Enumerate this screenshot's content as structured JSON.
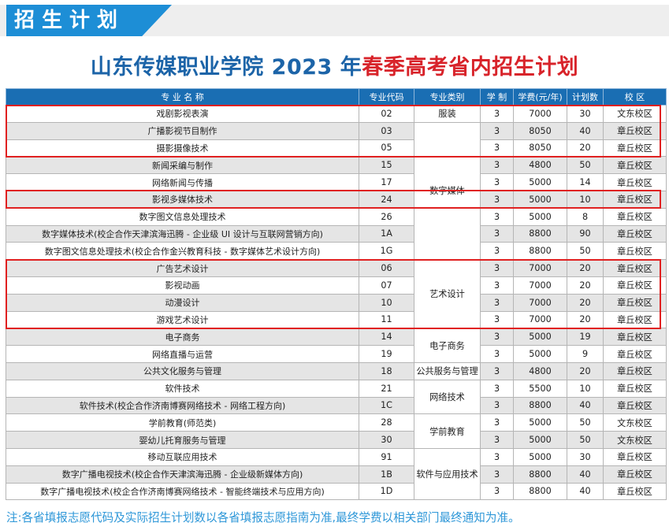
{
  "banner": {
    "title": "招生计划"
  },
  "heading": {
    "part1": "山东传媒职业学院 2023 年",
    "part2": "春季高考省内招生计划"
  },
  "table": {
    "headers": [
      "专 业 名 称",
      "专业代码",
      "专业类别",
      "学 制",
      "学费(元/年)",
      "计划数",
      "校 区"
    ],
    "rows": [
      {
        "name": "戏剧影视表演",
        "code": "02",
        "years": "3",
        "fee": "7000",
        "plan": "30",
        "campus": "文东校区"
      },
      {
        "name": "广播影视节目制作",
        "code": "03",
        "years": "3",
        "fee": "8050",
        "plan": "40",
        "campus": "章丘校区"
      },
      {
        "name": "摄影摄像技术",
        "code": "05",
        "years": "3",
        "fee": "8050",
        "plan": "20",
        "campus": "章丘校区"
      },
      {
        "name": "新闻采编与制作",
        "code": "15",
        "years": "3",
        "fee": "4800",
        "plan": "50",
        "campus": "章丘校区"
      },
      {
        "name": "网络新闻与传播",
        "code": "17",
        "years": "3",
        "fee": "5000",
        "plan": "14",
        "campus": "章丘校区"
      },
      {
        "name": "影视多媒体技术",
        "code": "24",
        "years": "3",
        "fee": "5000",
        "plan": "10",
        "campus": "章丘校区"
      },
      {
        "name": "数字图文信息处理技术",
        "code": "26",
        "years": "3",
        "fee": "5000",
        "plan": "8",
        "campus": "章丘校区"
      },
      {
        "name": "数字媒体技术(校企合作天津滨海迅腾 - 企业级 UI 设计与互联网营销方向)",
        "code": "1A",
        "years": "3",
        "fee": "8800",
        "plan": "90",
        "campus": "章丘校区"
      },
      {
        "name": "数字图文信息处理技术(校企合作金兴教育科技 - 数字媒体艺术设计方向)",
        "code": "1G",
        "years": "3",
        "fee": "8800",
        "plan": "50",
        "campus": "章丘校区"
      },
      {
        "name": "广告艺术设计",
        "code": "06",
        "years": "3",
        "fee": "7000",
        "plan": "20",
        "campus": "章丘校区"
      },
      {
        "name": "影视动画",
        "code": "07",
        "years": "3",
        "fee": "7000",
        "plan": "20",
        "campus": "章丘校区"
      },
      {
        "name": "动漫设计",
        "code": "10",
        "years": "3",
        "fee": "7000",
        "plan": "20",
        "campus": "章丘校区"
      },
      {
        "name": "游戏艺术设计",
        "code": "11",
        "years": "3",
        "fee": "7000",
        "plan": "20",
        "campus": "章丘校区"
      },
      {
        "name": "电子商务",
        "code": "14",
        "years": "3",
        "fee": "5000",
        "plan": "19",
        "campus": "章丘校区"
      },
      {
        "name": "网络直播与运营",
        "code": "19",
        "years": "3",
        "fee": "5000",
        "plan": "9",
        "campus": "章丘校区"
      },
      {
        "name": "公共文化服务与管理",
        "code": "18",
        "years": "3",
        "fee": "4800",
        "plan": "20",
        "campus": "章丘校区"
      },
      {
        "name": "软件技术",
        "code": "21",
        "years": "3",
        "fee": "5500",
        "plan": "10",
        "campus": "章丘校区"
      },
      {
        "name": "软件技术(校企合作济南博赛网络技术 - 网络工程方向)",
        "code": "1C",
        "years": "3",
        "fee": "8800",
        "plan": "40",
        "campus": "章丘校区"
      },
      {
        "name": "学前教育(师范类)",
        "code": "28",
        "years": "3",
        "fee": "5000",
        "plan": "50",
        "campus": "文东校区"
      },
      {
        "name": "婴幼儿托育服务与管理",
        "code": "30",
        "years": "3",
        "fee": "5000",
        "plan": "50",
        "campus": "文东校区"
      },
      {
        "name": "移动互联应用技术",
        "code": "91",
        "years": "3",
        "fee": "5000",
        "plan": "30",
        "campus": "章丘校区"
      },
      {
        "name": "数字广播电视技术(校企合作天津滨海迅腾 - 企业级新媒体方向)",
        "code": "1B",
        "years": "3",
        "fee": "8800",
        "plan": "40",
        "campus": "章丘校区"
      },
      {
        "name": "数字广播电视技术(校企合作济南博赛网络技术 - 智能终端技术与应用方向)",
        "code": "1D",
        "years": "3",
        "fee": "8800",
        "plan": "40",
        "campus": "章丘校区"
      }
    ],
    "categories": [
      {
        "label": "服装",
        "start": 0,
        "span": 1
      },
      {
        "label": "数字媒体",
        "start": 1,
        "span": 8
      },
      {
        "label": "艺术设计",
        "start": 9,
        "span": 4
      },
      {
        "label": "电子商务",
        "start": 13,
        "span": 2
      },
      {
        "label": "公共服务与管理",
        "start": 15,
        "span": 1
      },
      {
        "label": "网络技术",
        "start": 16,
        "span": 2
      },
      {
        "label": "学前教育",
        "start": 18,
        "span": 2
      },
      {
        "label": "软件与应用技术",
        "start": 20,
        "span": 3
      }
    ],
    "highlight_groups": [
      [
        0,
        2
      ],
      [
        5,
        5
      ],
      [
        9,
        12
      ]
    ]
  },
  "note": "注:各省填报志愿代码及实际招生计划数以各省填报志愿指南为准,最终学费以相关部门最终通知为准。",
  "colors": {
    "banner_blue": "#1d8ed6",
    "header_blue": "#1a6eb3",
    "title_blue": "#1c64a8",
    "title_red": "#d8232a",
    "highlight_red": "#e02020",
    "note_blue": "#2e97d8"
  }
}
